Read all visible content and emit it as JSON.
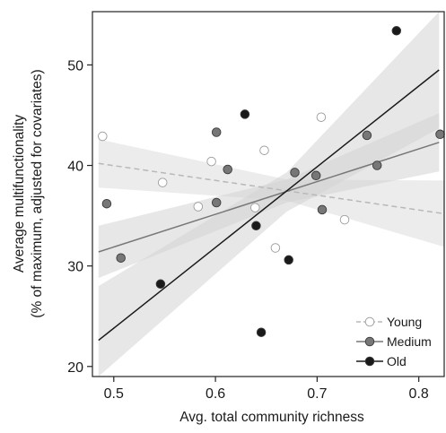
{
  "chart_data": {
    "type": "scatter",
    "xlabel": "Avg. total community richness",
    "ylabel_lines": [
      "Average multifunctionality",
      "(% of maximum, adjusted for covariates)"
    ],
    "xlim": [
      0.479,
      0.825
    ],
    "ylim": [
      19,
      55.3
    ],
    "xticks": [
      0.5,
      0.6,
      0.7,
      0.8
    ],
    "xtick_labels": [
      "0.5",
      "0.6",
      "0.7",
      "0.8"
    ],
    "yticks": [
      20,
      30,
      40,
      50
    ],
    "ytick_labels": [
      "20",
      "30",
      "40",
      "50"
    ],
    "grid": false,
    "legend_position": "bottom-right",
    "series": [
      {
        "name": "Young",
        "color": "#b8b8b8",
        "point_fill": "#ffffff",
        "line_style": "dashed",
        "points": [
          {
            "x": 0.489,
            "y": 42.9
          },
          {
            "x": 0.548,
            "y": 38.3
          },
          {
            "x": 0.583,
            "y": 35.9
          },
          {
            "x": 0.596,
            "y": 40.4
          },
          {
            "x": 0.639,
            "y": 35.8
          },
          {
            "x": 0.648,
            "y": 41.5
          },
          {
            "x": 0.659,
            "y": 31.8
          },
          {
            "x": 0.704,
            "y": 44.8
          },
          {
            "x": 0.727,
            "y": 34.6
          }
        ],
        "fit": {
          "x": [
            0.485,
            0.825
          ],
          "y": [
            40.2,
            35.2
          ]
        },
        "ci": {
          "x": [
            0.485,
            0.67,
            0.825
          ],
          "upper": [
            42.6,
            38.6,
            38.5
          ],
          "lower": [
            37.8,
            36.5,
            31.9
          ]
        }
      },
      {
        "name": "Medium",
        "color": "#777777",
        "point_fill": "#777777",
        "line_style": "solid",
        "points": [
          {
            "x": 0.493,
            "y": 36.2
          },
          {
            "x": 0.507,
            "y": 30.8
          },
          {
            "x": 0.601,
            "y": 43.3
          },
          {
            "x": 0.601,
            "y": 36.3
          },
          {
            "x": 0.612,
            "y": 39.6
          },
          {
            "x": 0.678,
            "y": 39.3
          },
          {
            "x": 0.699,
            "y": 39.0
          },
          {
            "x": 0.705,
            "y": 35.6
          },
          {
            "x": 0.749,
            "y": 43.0
          },
          {
            "x": 0.759,
            "y": 40.0
          },
          {
            "x": 0.821,
            "y": 43.1
          }
        ],
        "fit": {
          "x": [
            0.485,
            0.82
          ],
          "y": [
            31.4,
            42.3
          ]
        },
        "ci": {
          "x": [
            0.485,
            0.67,
            0.82
          ],
          "upper": [
            34.0,
            38.6,
            45.2
          ],
          "lower": [
            28.8,
            36.3,
            39.4
          ]
        }
      },
      {
        "name": "Old",
        "color": "#1a1a1a",
        "point_fill": "#1a1a1a",
        "line_style": "solid",
        "points": [
          {
            "x": 0.546,
            "y": 28.2
          },
          {
            "x": 0.629,
            "y": 45.1
          },
          {
            "x": 0.64,
            "y": 34.0
          },
          {
            "x": 0.645,
            "y": 23.4
          },
          {
            "x": 0.672,
            "y": 30.6
          },
          {
            "x": 0.778,
            "y": 53.4
          }
        ],
        "fit": {
          "x": [
            0.485,
            0.82
          ],
          "y": [
            22.6,
            49.5
          ]
        },
        "ci": {
          "x": [
            0.485,
            0.67,
            0.82
          ],
          "upper": [
            28.0,
            39.3,
            55.3
          ],
          "lower": [
            17.0,
            35.4,
            43.7
          ]
        }
      }
    ]
  }
}
